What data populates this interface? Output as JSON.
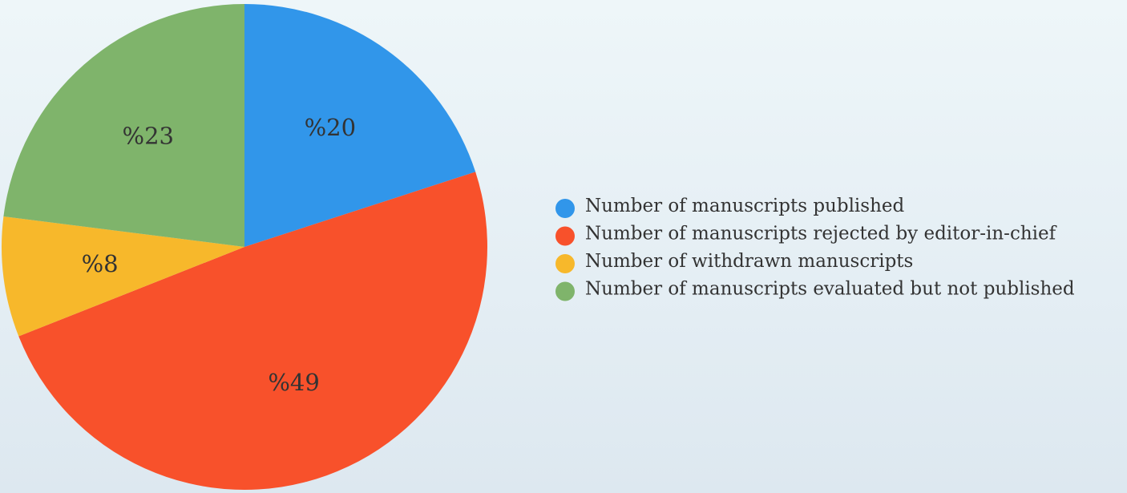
{
  "chart_data": {
    "type": "pie",
    "categories": [
      "Number of manuscripts published",
      "Number of manuscripts rejected by editor-in-chief",
      "Number of withdrawn manuscripts",
      "Number of manuscripts evaluated but not published"
    ],
    "values": [
      20,
      49,
      8,
      23
    ],
    "value_labels": [
      "%20",
      "%49",
      "%8",
      "%23"
    ],
    "colors": [
      "#3196ea",
      "#f8512b",
      "#f7b82b",
      "#7fb46b"
    ]
  }
}
